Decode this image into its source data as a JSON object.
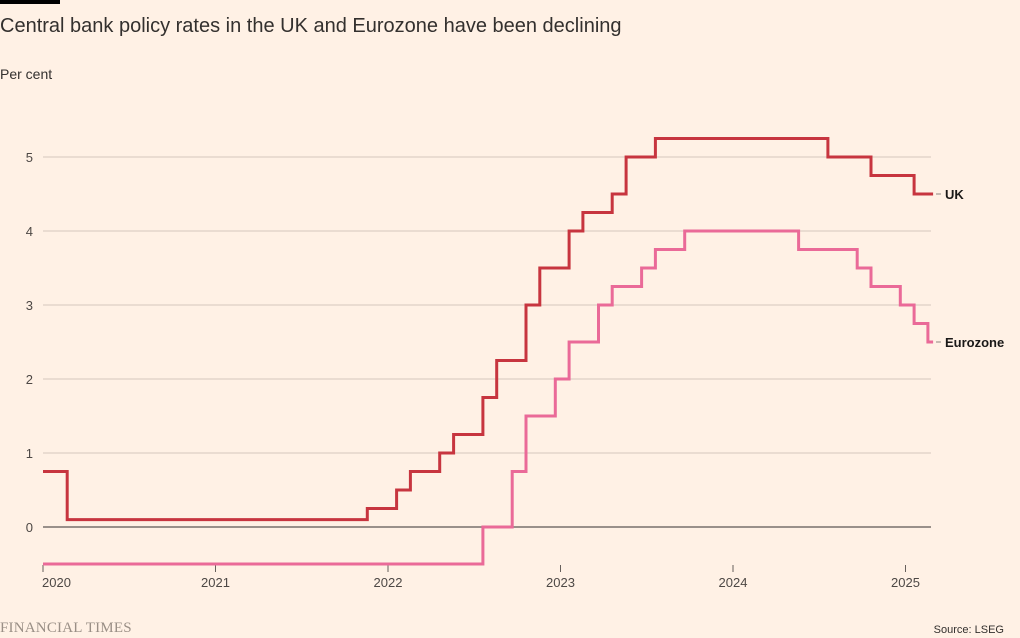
{
  "header": {
    "title": "Central bank policy rates in the UK and Eurozone have been declining",
    "subtitle": "Per cent"
  },
  "footer": {
    "logo_text": "FINANCIAL TIMES",
    "source": "Source: LSEG"
  },
  "colors": {
    "background": "#fff1e5",
    "uk": "#c7353f",
    "eurozone": "#ea6a98",
    "grid": "#d6c8bd",
    "zero_line": "#33302e"
  },
  "chart_data": {
    "type": "line",
    "step": true,
    "title": "Central bank policy rates in the UK and Eurozone have been declining",
    "ylabel": "Per cent",
    "xlabel": "",
    "xlim": [
      2020.0,
      2025.16
    ],
    "ylim": [
      -0.5,
      5.25
    ],
    "x_ticks": [
      2020,
      2021,
      2022,
      2023,
      2024,
      2025
    ],
    "y_ticks": [
      0,
      1,
      2,
      3,
      4,
      5
    ],
    "grid": true,
    "legend": "direct labels at right end of lines",
    "series": [
      {
        "name": "UK",
        "points": [
          [
            2020.0,
            0.75
          ],
          [
            2020.14,
            0.1
          ],
          [
            2021.88,
            0.25
          ],
          [
            2022.05,
            0.5
          ],
          [
            2022.13,
            0.75
          ],
          [
            2022.3,
            1.0
          ],
          [
            2022.38,
            1.25
          ],
          [
            2022.55,
            1.75
          ],
          [
            2022.63,
            2.25
          ],
          [
            2022.8,
            3.0
          ],
          [
            2022.88,
            3.5
          ],
          [
            2023.05,
            4.0
          ],
          [
            2023.13,
            4.25
          ],
          [
            2023.3,
            4.5
          ],
          [
            2023.38,
            5.0
          ],
          [
            2023.55,
            5.25
          ],
          [
            2024.55,
            5.0
          ],
          [
            2024.8,
            4.75
          ],
          [
            2025.05,
            4.5
          ],
          [
            2025.16,
            4.5
          ]
        ]
      },
      {
        "name": "Eurozone",
        "points": [
          [
            2020.0,
            -0.5
          ],
          [
            2022.55,
            0.0
          ],
          [
            2022.72,
            0.75
          ],
          [
            2022.8,
            1.5
          ],
          [
            2022.97,
            2.0
          ],
          [
            2023.05,
            2.5
          ],
          [
            2023.22,
            3.0
          ],
          [
            2023.3,
            3.25
          ],
          [
            2023.47,
            3.5
          ],
          [
            2023.55,
            3.75
          ],
          [
            2023.72,
            4.0
          ],
          [
            2024.38,
            3.75
          ],
          [
            2024.72,
            3.5
          ],
          [
            2024.8,
            3.25
          ],
          [
            2024.97,
            3.0
          ],
          [
            2025.05,
            2.75
          ],
          [
            2025.13,
            2.5
          ],
          [
            2025.16,
            2.5
          ]
        ]
      }
    ]
  }
}
